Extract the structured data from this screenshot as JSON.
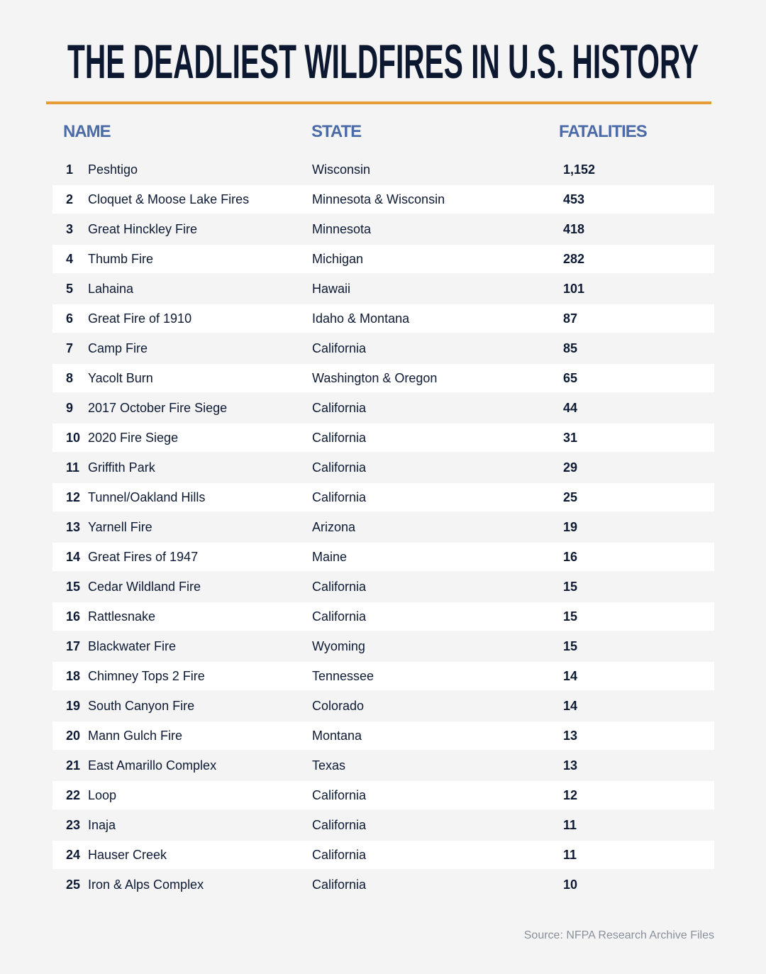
{
  "title": "THE DEADLIEST WILDFIRES IN U.S. HISTORY",
  "colors": {
    "title": "#0c1830",
    "accent_rule": "#e59c33",
    "header": "#4a6aa8",
    "stripe": "#ffffff",
    "background": "#f4f4f5",
    "source": "#8a909a"
  },
  "chart_data": {
    "type": "table",
    "columns": [
      "NAME",
      "STATE",
      "FATALITIES"
    ],
    "rows": [
      {
        "rank": "1",
        "name": "Peshtigo",
        "state": "Wisconsin",
        "fatalities": "1,152"
      },
      {
        "rank": "2",
        "name": "Cloquet & Moose Lake Fires",
        "state": "Minnesota & Wisconsin",
        "fatalities": "453"
      },
      {
        "rank": "3",
        "name": "Great Hinckley Fire",
        "state": "Minnesota",
        "fatalities": "418"
      },
      {
        "rank": "4",
        "name": "Thumb Fire",
        "state": "Michigan",
        "fatalities": "282"
      },
      {
        "rank": "5",
        "name": "Lahaina",
        "state": "Hawaii",
        "fatalities": "101"
      },
      {
        "rank": "6",
        "name": "Great Fire of 1910",
        "state": "Idaho & Montana",
        "fatalities": "87"
      },
      {
        "rank": "7",
        "name": "Camp Fire",
        "state": "California",
        "fatalities": "85"
      },
      {
        "rank": "8",
        "name": "Yacolt Burn",
        "state": "Washington & Oregon",
        "fatalities": "65"
      },
      {
        "rank": "9",
        "name": "2017 October Fire Siege",
        "state": "California",
        "fatalities": "44"
      },
      {
        "rank": "10",
        "name": "2020 Fire Siege",
        "state": "California",
        "fatalities": "31"
      },
      {
        "rank": "11",
        "name": "Griffith Park",
        "state": "California",
        "fatalities": "29"
      },
      {
        "rank": "12",
        "name": "Tunnel/Oakland Hills",
        "state": "California",
        "fatalities": "25"
      },
      {
        "rank": "13",
        "name": "Yarnell Fire",
        "state": "Arizona",
        "fatalities": "19"
      },
      {
        "rank": "14",
        "name": "Great Fires of 1947",
        "state": "Maine",
        "fatalities": "16"
      },
      {
        "rank": "15",
        "name": "Cedar Wildland Fire",
        "state": "California",
        "fatalities": "15"
      },
      {
        "rank": "16",
        "name": "Rattlesnake",
        "state": "California",
        "fatalities": "15"
      },
      {
        "rank": "17",
        "name": "Blackwater Fire",
        "state": "Wyoming",
        "fatalities": "15"
      },
      {
        "rank": "18",
        "name": "Chimney Tops 2 Fire",
        "state": "Tennessee",
        "fatalities": "14"
      },
      {
        "rank": "19",
        "name": "South Canyon Fire",
        "state": "Colorado",
        "fatalities": "14"
      },
      {
        "rank": "20",
        "name": "Mann Gulch Fire",
        "state": "Montana",
        "fatalities": "13"
      },
      {
        "rank": "21",
        "name": "East Amarillo Complex",
        "state": "Texas",
        "fatalities": "13"
      },
      {
        "rank": "22",
        "name": "Loop",
        "state": "California",
        "fatalities": "12"
      },
      {
        "rank": "23",
        "name": "Inaja",
        "state": "California",
        "fatalities": "11"
      },
      {
        "rank": "24",
        "name": "Hauser Creek",
        "state": "California",
        "fatalities": "11"
      },
      {
        "rank": "25",
        "name": "Iron & Alps Complex",
        "state": "California",
        "fatalities": "10"
      }
    ]
  },
  "source": "Source: NFPA Research Archive Files"
}
